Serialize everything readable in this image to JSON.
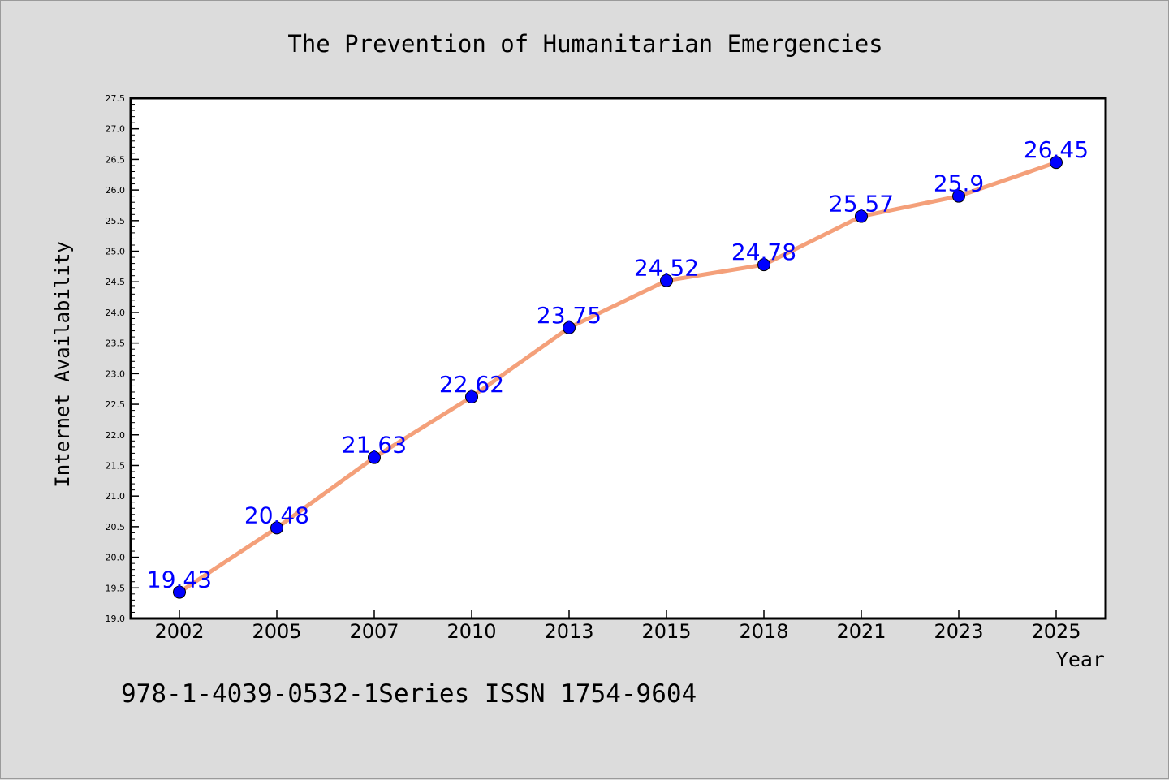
{
  "chart_data": {
    "type": "line",
    "title": "The Prevention of Humanitarian Emergencies",
    "xlabel": "Year",
    "ylabel": "Internet Availability",
    "footer_text": "978-1-4039-0532-1Series ISSN 1754-9604",
    "categories": [
      "2002",
      "2005",
      "2007",
      "2010",
      "2013",
      "2015",
      "2018",
      "2021",
      "2023",
      "2025"
    ],
    "series": [
      {
        "values": [
          19.43,
          20.48,
          21.63,
          22.62,
          23.75,
          24.52,
          24.78,
          25.57,
          25.9,
          26.45
        ],
        "labels": [
          "19.43",
          "20.48",
          "21.63",
          "22.62",
          "23.75",
          "24.52",
          "24.78",
          "25.57",
          "25.9",
          "26.45"
        ]
      }
    ],
    "ylim": [
      19.0,
      27.5
    ],
    "yticks": [
      "19.0",
      "19.5",
      "20.0",
      "20.5",
      "21.0",
      "21.5",
      "22.0",
      "22.5",
      "23.0",
      "23.5",
      "24.0",
      "24.5",
      "25.0",
      "25.5",
      "26.0",
      "26.5",
      "27.0",
      "27.5"
    ],
    "grid": false,
    "legend": "none",
    "colors": {
      "line": "#f4a07a",
      "marker": "#0000ff",
      "label": "#0000ff",
      "background": "#dcdcdc",
      "plot_area": "#ffffff"
    }
  }
}
